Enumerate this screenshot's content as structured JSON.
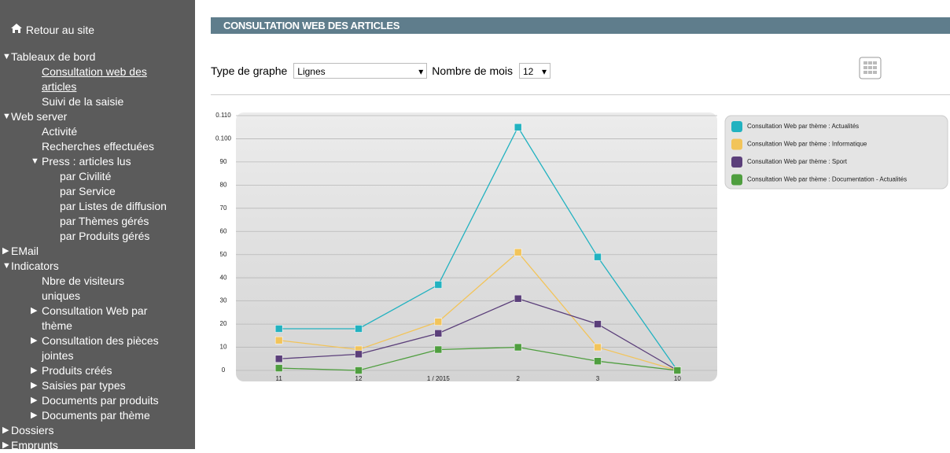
{
  "nav": {
    "home": "Retour au site",
    "items": [
      "Tableaux de bord",
      "Consultation web des articles",
      "Suivi de la saisie",
      "Web server",
      "Activité",
      "Recherches effectuées",
      "Press : articles lus",
      "par Civilité",
      "par Service",
      "par Listes de diffusion",
      "par Thèmes gérés",
      "par Produits gérés",
      "EMail",
      "Indicators",
      "Nbre de visiteurs uniques",
      "Consultation Web par thème",
      "Consultation des pièces jointes",
      "Produits créés",
      "Saisies par types",
      "Documents par produits",
      "Documents par thème",
      "Dossiers",
      "Emprunts"
    ]
  },
  "header": {
    "title": "CONSULTATION WEB DES ARTICLES"
  },
  "controls": {
    "graph_type_label": "Type de graphe",
    "graph_type": "Lignes",
    "months_label": "Nombre de mois",
    "months": "12"
  },
  "chart_data": {
    "type": "line",
    "categories": [
      "11",
      "12",
      "1 / 2015",
      "2",
      "3",
      "10"
    ],
    "series": [
      {
        "name": "Consultation Web par thème : Actualités",
        "color": "#22b2c0",
        "values": [
          18,
          18,
          37,
          105,
          49,
          0
        ]
      },
      {
        "name": "Consultation Web par thème : Informatique",
        "color": "#f2c45a",
        "values": [
          13,
          9,
          21,
          51,
          10,
          0
        ]
      },
      {
        "name": "Consultation Web par thème : Sport",
        "color": "#5b3f7a",
        "values": [
          5,
          7,
          16,
          31,
          20,
          0
        ]
      },
      {
        "name": "Consultation Web par thème : Documentation - Actualités",
        "color": "#4f9e3f",
        "values": [
          1,
          0,
          9,
          10,
          4,
          0
        ]
      }
    ],
    "ylim": [
      0,
      110
    ],
    "yticks": [
      0,
      10,
      20,
      30,
      40,
      50,
      60,
      70,
      80,
      90,
      {
        "value": 100,
        "label": "0.100"
      },
      {
        "value": 110,
        "label": "0.110"
      }
    ],
    "grid": true,
    "legend": "right"
  }
}
